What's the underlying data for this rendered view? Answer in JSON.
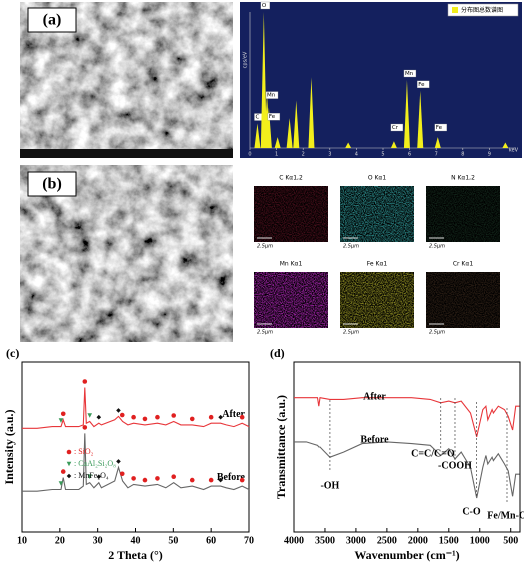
{
  "panels": {
    "a_label": "(a)",
    "b_label": "(b)",
    "c_label": "(c)",
    "d_label": "(d)"
  },
  "maps": [
    {
      "label": "C Kα1,2",
      "scale": "2.5μm",
      "color": "#4a0f1c"
    },
    {
      "label": "O Kα1",
      "scale": "2.5μm",
      "color": "#2c8c8c"
    },
    {
      "label": "N Kα1,2",
      "scale": "2.5μm",
      "color": "#12261a"
    },
    {
      "label": "Mn Kα1",
      "scale": "2.5μm",
      "color": "#a424ac"
    },
    {
      "label": "Fe Kα1",
      "scale": "2.5μm",
      "color": "#8c8a22"
    },
    {
      "label": "Cr Kα1",
      "scale": "2.5μm",
      "color": "#2e2016"
    }
  ],
  "chart_data": [
    {
      "type": "spectrum",
      "legend": "分布图总数谱图",
      "x_label": "keV",
      "y_label": "cps/eV",
      "xlim": [
        0,
        10
      ],
      "ylim": [
        0,
        100
      ],
      "xticks": [
        0,
        1,
        2,
        3,
        4,
        5,
        6,
        7,
        8,
        9
      ],
      "color": "#f2ee1c",
      "x": [
        0.28,
        0.52,
        0.64,
        0.71,
        1.04,
        1.49,
        1.74,
        2.31,
        3.69,
        5.41,
        5.9,
        6.4,
        7.06,
        9.6
      ],
      "values": [
        18,
        100,
        40,
        30,
        8,
        22,
        35,
        52,
        4,
        5,
        50,
        42,
        8,
        4
      ],
      "labels": [
        "C",
        "O",
        "Mn",
        "Fe",
        null,
        null,
        null,
        null,
        null,
        "Cr",
        "Mn",
        "Fe",
        "Fe",
        null
      ]
    },
    {
      "type": "xrd",
      "x_label": "2 Theta (°)",
      "y_label": "Intensity (a.u.)",
      "xlim": [
        10,
        70
      ],
      "ylim": [
        0,
        100
      ],
      "xticks": [
        10,
        20,
        30,
        40,
        50,
        60,
        70
      ],
      "x": [
        10,
        14,
        18,
        20.3,
        20.9,
        21.5,
        25,
        26.2,
        26.6,
        27.0,
        27.9,
        29,
        30.3,
        31,
        34.5,
        35.5,
        36.6,
        38,
        39.5,
        42.5,
        45.8,
        48,
        50.1,
        52,
        55,
        58,
        60,
        62.5,
        64,
        66,
        68.2,
        70
      ],
      "series": [
        {
          "name": "After",
          "color": "#e8363a",
          "values": [
            61,
            61,
            62,
            62,
            66,
            62,
            62,
            63,
            85,
            64,
            65,
            62,
            64,
            63,
            66,
            68,
            65,
            63,
            64,
            63,
            64,
            63,
            65,
            63,
            63,
            62,
            64,
            64,
            63,
            62,
            64,
            62
          ]
        },
        {
          "name": "Before",
          "color": "#666666",
          "values": [
            24,
            24,
            25,
            25,
            32,
            25,
            25,
            27,
            58,
            28,
            29,
            26,
            29,
            26,
            30,
            38,
            30,
            26,
            28,
            27,
            28,
            26,
            29,
            26,
            27,
            25,
            27,
            27,
            26,
            25,
            27,
            25
          ]
        }
      ],
      "phases": [
        {
          "name": ": SiO₂",
          "color": "#e02020",
          "marker": "circle",
          "x": [
            20.9,
            26.6,
            36.5,
            39.5,
            42.5,
            45.8,
            50.1,
            55,
            60,
            68.2
          ]
        },
        {
          "name": ": CaAl₂Si₂O₈",
          "color": "#3a9a5a",
          "marker": "triangle",
          "x": [
            20.3,
            27.9
          ]
        },
        {
          "name": ": MnFe₂O₄",
          "color": "#111111",
          "marker": "diamond",
          "x": [
            30.3,
            35.5,
            62.5
          ]
        }
      ]
    },
    {
      "type": "ftir",
      "x_label": "Wavenumber (cm⁻¹)",
      "y_label": "Transmittance (a.u.)",
      "xlim": [
        4000,
        350
      ],
      "ylim": [
        0,
        100
      ],
      "xticks": [
        4000,
        3500,
        3000,
        2500,
        2000,
        1500,
        1000,
        500
      ],
      "x": [
        4000,
        3800,
        3620,
        3600,
        3580,
        3420,
        3200,
        2900,
        2500,
        2100,
        1800,
        1630,
        1500,
        1400,
        1300,
        1150,
        1050,
        950,
        900,
        870,
        800,
        780,
        700,
        600,
        540,
        470,
        420,
        360
      ],
      "series": [
        {
          "name": "After",
          "color": "#e8363a",
          "values": [
            79,
            79,
            79,
            74,
            79,
            78,
            78,
            79,
            79,
            79,
            78,
            76,
            77,
            76,
            77,
            70,
            56,
            72,
            74,
            66,
            72,
            70,
            74,
            72,
            68,
            60,
            74,
            74
          ]
        },
        {
          "name": "Before",
          "color": "#666666",
          "values": [
            53,
            53,
            51,
            50,
            50,
            44,
            47,
            52,
            53,
            52,
            51,
            45,
            49,
            43,
            47,
            38,
            20,
            38,
            45,
            40,
            44,
            42,
            46,
            40,
            36,
            21,
            34,
            34
          ]
        }
      ],
      "annotations": [
        {
          "text": "-OH",
          "x": 3420
        },
        {
          "text": "C=C/C=O",
          "x": 1630
        },
        {
          "text": "-COOH",
          "x": 1400
        },
        {
          "text": "C-O",
          "x": 1050
        },
        {
          "text": "Fe/Mn-O",
          "x": 560
        }
      ]
    }
  ]
}
